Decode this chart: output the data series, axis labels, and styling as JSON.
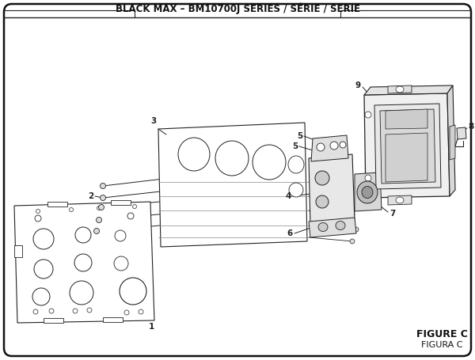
{
  "title": "BLACK MAX – BM10700J SERIES / SÉRIE / SERIE",
  "figure_label": "FIGURE C",
  "figura_label": "FIGURA C",
  "bg_color": "#ffffff",
  "line_color": "#222222",
  "title_fontsize": 8.5,
  "label_fontsize": 7.5
}
